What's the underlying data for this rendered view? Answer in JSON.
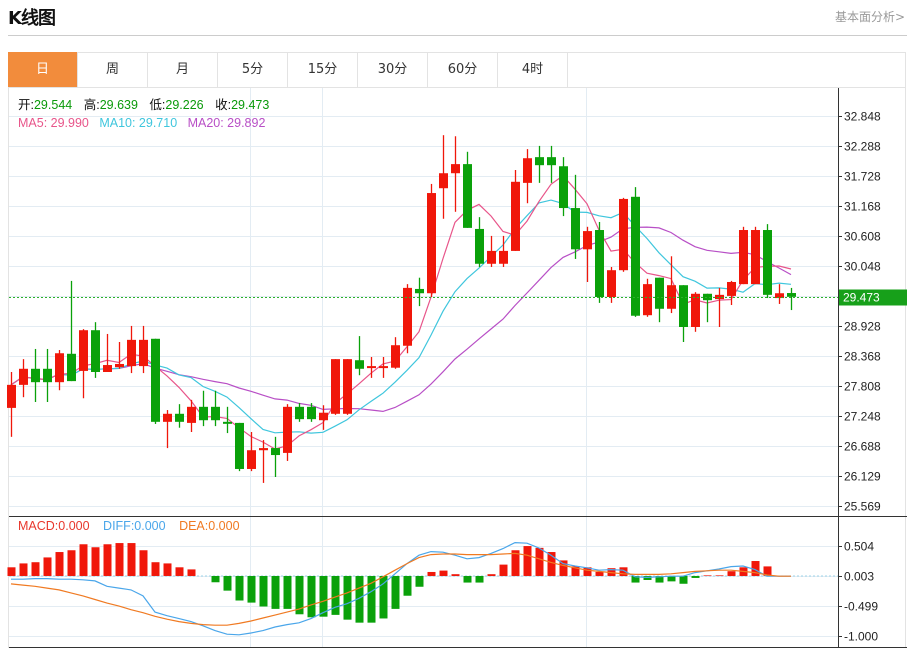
{
  "header": {
    "title": "K线图",
    "link": "基本面分析>"
  },
  "tabs": [
    {
      "label": "日",
      "active": true
    },
    {
      "label": "周"
    },
    {
      "label": "月"
    },
    {
      "label": "5分"
    },
    {
      "label": "15分"
    },
    {
      "label": "30分"
    },
    {
      "label": "60分"
    },
    {
      "label": "4时"
    }
  ],
  "info": {
    "open_label": "开:",
    "open": "29.544",
    "high_label": "高:",
    "high": "29.639",
    "low_label": "低:",
    "low": "29.226",
    "close_label": "收:",
    "close": "29.473",
    "ma5": "MA5: 29.990",
    "ma10": "MA10: 29.710",
    "ma20": "MA20: 29.892"
  },
  "macd_info": {
    "macd": "MACD:0.000",
    "diff": "DIFF:0.000",
    "dea": "DEA:0.000"
  },
  "colors": {
    "up": "#f0170a",
    "down": "#0aa10a",
    "ma5": "#e8558a",
    "ma10": "#3fc6dd",
    "ma20": "#b84fc6",
    "diff": "#4aa6ea",
    "dea": "#f07a22",
    "accent": "#f28c3c"
  },
  "chart_data": [
    {
      "type": "candlestick",
      "title": "K线图",
      "ylim": [
        25.569,
        32.848
      ],
      "yticks": [
        "32.848",
        "32.288",
        "31.728",
        "31.168",
        "30.608",
        "30.048",
        "28.928",
        "28.368",
        "27.808",
        "27.248",
        "26.688",
        "26.129",
        "25.569"
      ],
      "last_price": "29.473",
      "ohlc": [
        [
          27.4,
          28.07,
          26.86,
          27.83
        ],
        [
          27.83,
          28.31,
          27.6,
          28.13
        ],
        [
          28.13,
          28.5,
          27.51,
          27.88
        ],
        [
          28.13,
          28.5,
          27.51,
          27.88
        ],
        [
          27.88,
          28.48,
          27.73,
          28.42
        ],
        [
          28.41,
          29.77,
          27.9,
          27.9
        ],
        [
          28.09,
          28.87,
          27.58,
          28.85
        ],
        [
          28.85,
          29.0,
          27.96,
          28.07
        ],
        [
          28.07,
          28.78,
          28.07,
          28.2
        ],
        [
          28.16,
          28.63,
          28.13,
          28.22
        ],
        [
          28.18,
          28.93,
          28.05,
          28.67
        ],
        [
          28.18,
          28.93,
          28.05,
          28.67
        ],
        [
          28.69,
          28.69,
          27.1,
          27.14
        ],
        [
          27.14,
          27.36,
          26.65,
          27.29
        ],
        [
          27.29,
          27.47,
          27.03,
          27.14
        ],
        [
          27.12,
          27.55,
          26.95,
          27.42
        ],
        [
          27.42,
          27.72,
          27.06,
          27.17
        ],
        [
          27.42,
          27.72,
          27.06,
          27.17
        ],
        [
          27.14,
          27.42,
          26.93,
          27.12
        ],
        [
          27.12,
          27.12,
          26.22,
          26.26
        ],
        [
          26.26,
          26.95,
          26.22,
          26.61
        ],
        [
          26.61,
          26.8,
          26.0,
          26.65
        ],
        [
          26.65,
          26.86,
          26.11,
          26.52
        ],
        [
          26.56,
          27.47,
          26.41,
          27.42
        ],
        [
          27.42,
          27.49,
          27.14,
          27.19
        ],
        [
          27.42,
          27.49,
          27.14,
          27.19
        ],
        [
          27.17,
          27.45,
          26.99,
          27.31
        ],
        [
          27.29,
          28.31,
          27.27,
          28.31
        ],
        [
          27.29,
          28.31,
          27.27,
          28.31
        ],
        [
          28.29,
          28.74,
          28.01,
          28.13
        ],
        [
          28.15,
          28.35,
          27.96,
          28.18
        ],
        [
          28.15,
          28.35,
          27.96,
          28.18
        ],
        [
          28.15,
          28.72,
          28.13,
          28.57
        ],
        [
          28.56,
          29.71,
          28.42,
          29.64
        ],
        [
          29.62,
          29.83,
          29.3,
          29.54
        ],
        [
          29.54,
          31.58,
          29.47,
          31.41
        ],
        [
          31.5,
          32.49,
          30.93,
          31.78
        ],
        [
          31.78,
          32.47,
          31.06,
          31.95
        ],
        [
          31.95,
          32.18,
          30.76,
          30.76
        ],
        [
          30.74,
          30.96,
          30.03,
          30.09
        ],
        [
          30.09,
          30.61,
          30.03,
          30.33
        ],
        [
          30.09,
          30.61,
          30.03,
          30.33
        ],
        [
          30.33,
          31.84,
          30.33,
          31.62
        ],
        [
          31.6,
          32.23,
          31.22,
          32.06
        ],
        [
          32.08,
          32.29,
          31.6,
          31.93
        ],
        [
          32.08,
          32.29,
          31.6,
          31.93
        ],
        [
          31.91,
          32.08,
          30.98,
          31.13
        ],
        [
          31.13,
          31.75,
          30.18,
          30.36
        ],
        [
          30.36,
          30.78,
          29.75,
          30.7
        ],
        [
          30.72,
          30.87,
          29.36,
          29.47
        ],
        [
          29.47,
          30.03,
          29.36,
          29.97
        ],
        [
          29.97,
          31.32,
          29.94,
          31.3
        ],
        [
          31.34,
          31.52,
          29.1,
          29.12
        ],
        [
          29.13,
          29.81,
          29.1,
          29.71
        ],
        [
          29.83,
          29.83,
          29.0,
          29.25
        ],
        [
          29.25,
          30.23,
          29.17,
          29.69
        ],
        [
          29.69,
          29.69,
          28.63,
          28.91
        ],
        [
          28.91,
          29.56,
          28.82,
          29.53
        ],
        [
          29.53,
          29.53,
          29.0,
          29.41
        ],
        [
          29.43,
          29.64,
          28.91,
          29.51
        ],
        [
          29.49,
          29.77,
          29.32,
          29.75
        ],
        [
          29.71,
          30.78,
          29.71,
          30.72
        ],
        [
          29.71,
          30.78,
          29.71,
          30.72
        ],
        [
          30.72,
          30.83,
          29.45,
          29.51
        ],
        [
          29.45,
          29.71,
          29.34,
          29.54
        ],
        [
          29.544,
          29.639,
          29.226,
          29.473
        ]
      ]
    },
    {
      "type": "bar+line",
      "title": "MACD",
      "ylim": [
        -1.0,
        0.504
      ],
      "yticks": [
        "0.504",
        "0.003",
        "-0.499",
        "-1.000"
      ],
      "macd": [
        0.145,
        0.21,
        0.23,
        0.31,
        0.4,
        0.43,
        0.53,
        0.48,
        0.53,
        0.55,
        0.55,
        0.43,
        0.23,
        0.21,
        0.145,
        0.11,
        0.0,
        -0.105,
        -0.245,
        -0.41,
        -0.445,
        -0.51,
        -0.55,
        -0.55,
        -0.64,
        -0.69,
        -0.68,
        -0.65,
        -0.73,
        -0.78,
        -0.78,
        -0.71,
        -0.55,
        -0.33,
        -0.18,
        0.067,
        0.09,
        0.03,
        -0.11,
        -0.11,
        0.03,
        0.19,
        0.43,
        0.5,
        0.47,
        0.4,
        0.26,
        0.16,
        0.145,
        0.067,
        0.13,
        0.145,
        -0.11,
        -0.067,
        -0.11,
        -0.09,
        -0.13,
        -0.033,
        0.01,
        0.01,
        0.08,
        0.145,
        0.25,
        0.16,
        0.005,
        0.0
      ],
      "diff": [
        -0.05,
        -0.05,
        -0.04,
        -0.04,
        -0.05,
        -0.05,
        -0.06,
        -0.08,
        -0.17,
        -0.2,
        -0.23,
        -0.33,
        -0.6,
        -0.66,
        -0.71,
        -0.76,
        -0.83,
        -0.91,
        -0.97,
        -0.98,
        -0.95,
        -0.91,
        -0.85,
        -0.81,
        -0.78,
        -0.71,
        -0.61,
        -0.52,
        -0.46,
        -0.37,
        -0.26,
        -0.13,
        0.04,
        0.21,
        0.35,
        0.41,
        0.4,
        0.35,
        0.29,
        0.31,
        0.38,
        0.46,
        0.56,
        0.55,
        0.47,
        0.35,
        0.21,
        0.17,
        0.14,
        0.1,
        0.11,
        0.1,
        -0.01,
        -0.02,
        -0.01,
        0.0,
        0.0,
        0.06,
        0.09,
        0.12,
        0.16,
        0.17,
        0.11,
        0.0,
        0.0,
        0.0
      ],
      "dea": [
        -0.13,
        -0.15,
        -0.17,
        -0.2,
        -0.23,
        -0.28,
        -0.33,
        -0.39,
        -0.45,
        -0.5,
        -0.56,
        -0.61,
        -0.67,
        -0.72,
        -0.76,
        -0.79,
        -0.81,
        -0.82,
        -0.82,
        -0.79,
        -0.75,
        -0.7,
        -0.65,
        -0.6,
        -0.55,
        -0.48,
        -0.42,
        -0.35,
        -0.28,
        -0.2,
        -0.12,
        -0.01,
        0.1,
        0.21,
        0.31,
        0.36,
        0.37,
        0.37,
        0.36,
        0.36,
        0.36,
        0.37,
        0.38,
        0.35,
        0.29,
        0.23,
        0.18,
        0.14,
        0.1,
        0.08,
        0.06,
        0.04,
        0.03,
        0.03,
        0.03,
        0.04,
        0.06,
        0.08,
        0.09,
        0.1,
        0.1,
        0.08,
        0.06,
        0.02,
        0.0,
        0.0
      ]
    }
  ]
}
